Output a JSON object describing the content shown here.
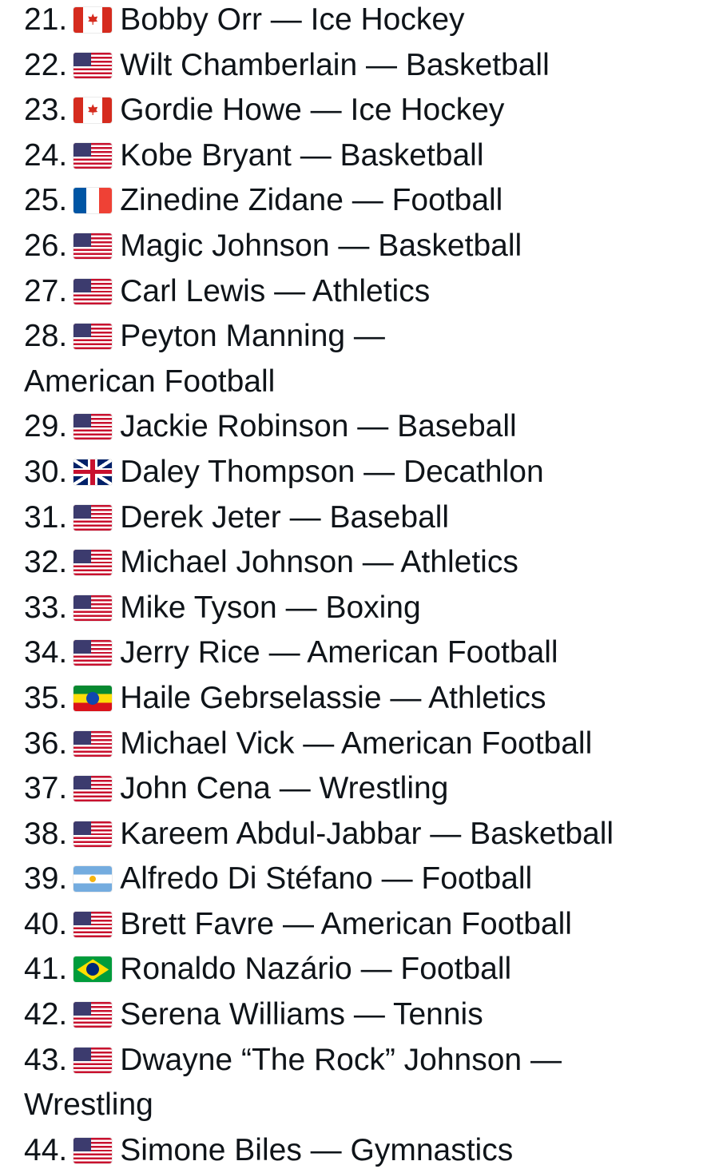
{
  "items": [
    {
      "number": "21.",
      "flag": "CA",
      "name": "Bobby Orr",
      "sport": "Ice Hockey"
    },
    {
      "number": "22.",
      "flag": "US",
      "name": "Wilt Chamberlain",
      "sport": "Basketball"
    },
    {
      "number": "23.",
      "flag": "CA",
      "name": "Gordie Howe",
      "sport": "Ice Hockey"
    },
    {
      "number": "24.",
      "flag": "US",
      "name": "Kobe Bryant",
      "sport": "Basketball"
    },
    {
      "number": "25.",
      "flag": "FR",
      "name": "Zinedine Zidane",
      "sport": "Football"
    },
    {
      "number": "26.",
      "flag": "US",
      "name": "Magic Johnson",
      "sport": "Basketball"
    },
    {
      "number": "27.",
      "flag": "US",
      "name": "Carl Lewis",
      "sport": "Athletics"
    },
    {
      "number": "28.",
      "flag": "US",
      "name": "Peyton Manning",
      "sport": "American Football"
    },
    {
      "number": "29.",
      "flag": "US",
      "name": "Jackie Robinson",
      "sport": "Baseball"
    },
    {
      "number": "30.",
      "flag": "GB",
      "name": "Daley Thompson",
      "sport": "Decathlon"
    },
    {
      "number": "31.",
      "flag": "US",
      "name": "Derek Jeter",
      "sport": "Baseball"
    },
    {
      "number": "32.",
      "flag": "US",
      "name": "Michael Johnson",
      "sport": "Athletics"
    },
    {
      "number": "33.",
      "flag": "US",
      "name": "Mike Tyson",
      "sport": "Boxing"
    },
    {
      "number": "34.",
      "flag": "US",
      "name": "Jerry Rice",
      "sport": "American Football"
    },
    {
      "number": "35.",
      "flag": "ET",
      "name": "Haile Gebrselassie",
      "sport": "Athletics"
    },
    {
      "number": "36.",
      "flag": "US",
      "name": "Michael Vick",
      "sport": "American Football"
    },
    {
      "number": "37.",
      "flag": "US",
      "name": "John Cena",
      "sport": "Wrestling"
    },
    {
      "number": "38.",
      "flag": "US",
      "name": "Kareem Abdul-Jabbar",
      "sport": "Basketball"
    },
    {
      "number": "39.",
      "flag": "AR",
      "name": "Alfredo Di Stéfano",
      "sport": "Football"
    },
    {
      "number": "40.",
      "flag": "US",
      "name": "Brett Favre",
      "sport": "American Football"
    },
    {
      "number": "41.",
      "flag": "BR",
      "name": "Ronaldo Nazário",
      "sport": "Football"
    },
    {
      "number": "42.",
      "flag": "US",
      "name": "Serena Williams",
      "sport": "Tennis"
    },
    {
      "number": "43.",
      "flag": "US",
      "name": "Dwayne “The Rock” Johnson",
      "sport": "Wrestling"
    },
    {
      "number": "44.",
      "flag": "US",
      "name": "Simone Biles",
      "sport": "Gymnastics"
    }
  ],
  "separator": "—"
}
